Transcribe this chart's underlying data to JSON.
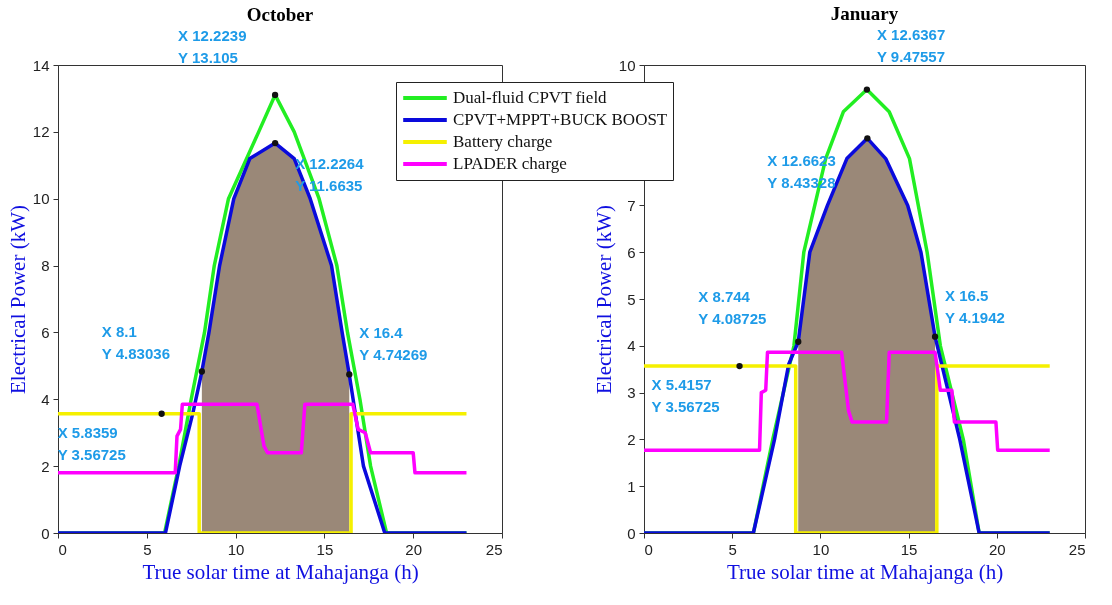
{
  "chart_data": [
    {
      "type": "line",
      "title": "October",
      "xlabel": "True solar time at Mahajanga (h)",
      "ylabel": "Electrical Power (kW)",
      "xlim": [
        0,
        25
      ],
      "xticks": [
        0,
        5,
        10,
        15,
        20,
        25
      ],
      "ylim": [
        0,
        14
      ],
      "yticks": [
        0,
        2,
        4,
        6,
        8,
        10,
        12,
        14
      ],
      "series": [
        {
          "type": "area",
          "color": "#9a8878",
          "x": [
            8.1,
            8.5,
            9.1,
            9.9,
            10.8,
            12.2264,
            13.3,
            14.2,
            15.4,
            16.0,
            16.4
          ],
          "values": [
            4.83036,
            6,
            8,
            10,
            11.2,
            11.6635,
            11.2,
            10,
            8,
            6,
            4.74269
          ]
        },
        {
          "color": "#22ee22",
          "x": [
            0,
            6.0,
            6.8,
            7.5,
            8.25,
            8.8,
            9.6,
            11.3,
            12.2239,
            13.3,
            14.7,
            15.7,
            16.3,
            17.0,
            17.6,
            18.5,
            23
          ],
          "values": [
            0,
            0,
            2,
            4,
            6,
            8,
            10,
            12,
            13.105,
            12,
            10,
            8,
            6,
            4,
            2,
            0,
            0
          ]
        },
        {
          "color": "#0a0adc",
          "x": [
            0,
            6.05,
            6.85,
            7.6,
            8.1,
            8.5,
            9.1,
            9.9,
            10.8,
            12.2264,
            13.3,
            14.2,
            15.4,
            16.0,
            16.4,
            17.2,
            18.4,
            23
          ],
          "values": [
            0,
            0,
            2,
            3.6,
            4.83036,
            6,
            8,
            10,
            11.2,
            11.6635,
            11.2,
            10,
            8,
            6,
            4.74269,
            2,
            0,
            0
          ]
        },
        {
          "color": "#f5f000",
          "x": [
            0,
            5.8359,
            7.95,
            7.95,
            16.5,
            16.5,
            23
          ],
          "values": [
            3.56725,
            3.56725,
            3.56725,
            0,
            0,
            3.56725,
            3.56725
          ]
        },
        {
          "color": "#ff00ff",
          "x": [
            0,
            6.6,
            6.7,
            6.9,
            7.0,
            11.2,
            11.6,
            11.8,
            13.7,
            13.9,
            16.6,
            16.9,
            17.3,
            17.6,
            20.0,
            20.1,
            23
          ],
          "values": [
            1.8,
            1.8,
            2.9,
            3.1,
            3.85,
            3.85,
            2.6,
            2.4,
            2.4,
            3.85,
            3.85,
            3.1,
            3.0,
            2.4,
            2.4,
            1.8,
            1.8
          ]
        }
      ],
      "annotations": [
        {
          "text": "X 12.2239\nY 13.105",
          "x": 12.2239,
          "y": 13.105
        },
        {
          "text": "X 12.2264\nY 11.6635",
          "x": 12.2264,
          "y": 11.6635
        },
        {
          "text": "X 8.1\nY 4.83036",
          "x": 8.1,
          "y": 4.83036
        },
        {
          "text": "X 16.4\nY 4.74269",
          "x": 16.4,
          "y": 4.74269
        },
        {
          "text": "X 5.8359\nY 3.56725",
          "x": 5.8359,
          "y": 3.56725
        }
      ]
    },
    {
      "type": "line",
      "title": "January",
      "xlabel": "True solar time at Mahajanga (h)",
      "ylabel": "Electrical Power (kW)",
      "xlim": [
        0,
        25
      ],
      "xticks": [
        0,
        5,
        10,
        15,
        20,
        25
      ],
      "ylim": [
        0,
        10
      ],
      "yticks": [
        0,
        1,
        2,
        3,
        4,
        5,
        6,
        7,
        10
      ],
      "legend": "top left",
      "series": [
        {
          "type": "area",
          "color": "#9a8878",
          "x": [
            8.744,
            9.4,
            10.4,
            11.5,
            12.6623,
            13.7,
            14.95,
            15.7,
            16.5
          ],
          "values": [
            4.08725,
            6,
            7,
            8,
            8.43328,
            8,
            7,
            6,
            4.1942
          ]
        },
        {
          "name": "Dual-fluid CPVT field",
          "color": "#22ee22",
          "x": [
            0,
            6.2,
            7.3,
            8.5,
            9.06,
            10.3,
            11.3,
            12.6367,
            13.9,
            15.05,
            16.05,
            16.8,
            18.1,
            19.0,
            23
          ],
          "values": [
            0,
            0,
            2,
            4,
            6,
            8,
            9,
            9.47557,
            9,
            8,
            6,
            4,
            2,
            0,
            0
          ]
        },
        {
          "name": "CPVT+MPPT+BUCK BOOST",
          "color": "#0a0adc",
          "x": [
            0,
            6.2,
            7.4,
            8.2,
            8.744,
            9.4,
            10.4,
            11.5,
            12.6623,
            13.7,
            14.95,
            15.7,
            16.5,
            17.9,
            19.0,
            23
          ],
          "values": [
            0,
            0,
            2,
            3.6,
            4.08725,
            6,
            7,
            8,
            8.43328,
            8,
            7,
            6,
            4.1942,
            2,
            0,
            0
          ]
        },
        {
          "name": "Battery charge",
          "color": "#f5f000",
          "x": [
            0,
            5.4157,
            8.6,
            8.6,
            16.6,
            16.6,
            23
          ],
          "values": [
            3.56725,
            3.56725,
            3.56725,
            0,
            0,
            3.56725,
            3.56725
          ]
        },
        {
          "name": "LPADER charge",
          "color": "#ff00ff",
          "x": [
            0,
            6.55,
            6.65,
            6.9,
            7.0,
            11.2,
            11.6,
            11.8,
            13.75,
            13.9,
            16.5,
            16.8,
            17.45,
            17.6,
            19.95,
            20.05,
            23
          ],
          "values": [
            1.77,
            1.77,
            3.0,
            3.05,
            3.86,
            3.86,
            2.6,
            2.37,
            2.37,
            3.86,
            3.86,
            3.05,
            3.05,
            2.37,
            2.37,
            1.77,
            1.77
          ]
        }
      ],
      "annotations": [
        {
          "text": "X 12.6367\nY 9.47557",
          "x": 12.6367,
          "y": 9.47557
        },
        {
          "text": "X 12.6623\nY 8.43328",
          "x": 12.6623,
          "y": 8.43328
        },
        {
          "text": "X 8.744\nY 4.08725",
          "x": 8.744,
          "y": 4.08725
        },
        {
          "text": "X 16.5\nY 4.1942",
          "x": 16.5,
          "y": 4.1942
        },
        {
          "text": "X 5.4157\nY 3.56725",
          "x": 5.4157,
          "y": 3.56725
        }
      ]
    }
  ]
}
